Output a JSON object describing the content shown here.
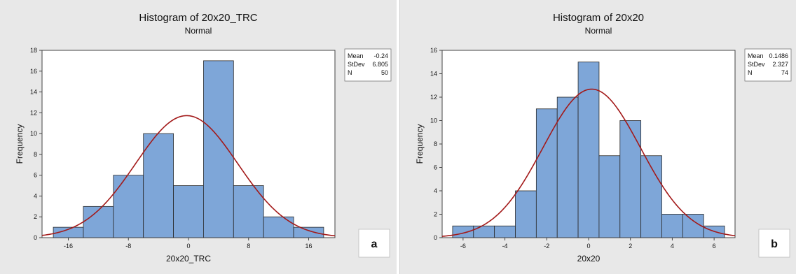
{
  "colors": {
    "bar_fill": "#7ea6d8",
    "bar_stroke": "#2a2a2a",
    "curve": "#a31a1a",
    "panel_bg": "#e8e8e8",
    "plot_bg": "#ffffff"
  },
  "chart_data": [
    {
      "type": "bar",
      "title": "Histogram of 20x20_TRC",
      "subtitle": "Normal",
      "xlabel": "20x20_TRC",
      "ylabel": "Frequency",
      "panel_letter": "a",
      "xlim": [
        -19.5,
        19.5
      ],
      "ylim": [
        0,
        18
      ],
      "xticks": [
        -16,
        -8,
        0,
        8,
        16
      ],
      "yticks": [
        0,
        2,
        4,
        6,
        8,
        10,
        12,
        14,
        16,
        18
      ],
      "bin_edges": [
        -18,
        -14,
        -10,
        -6,
        -2,
        2,
        6,
        10,
        14,
        18
      ],
      "values": [
        1,
        3,
        6,
        10,
        5,
        17,
        5,
        2,
        1
      ],
      "fit": {
        "dist": "normal",
        "mean": -0.24,
        "stdev": 6.805,
        "n": 50,
        "bin_width": 4
      },
      "legend": {
        "position": "top-right",
        "rows": [
          {
            "label": "Mean",
            "value": "-0.24"
          },
          {
            "label": "StDev",
            "value": "6.805"
          },
          {
            "label": "N",
            "value": "50"
          }
        ]
      }
    },
    {
      "type": "bar",
      "title": "Histogram of 20x20",
      "subtitle": "Normal",
      "xlabel": "20x20",
      "ylabel": "Frequency",
      "panel_letter": "b",
      "xlim": [
        -7.0,
        7.0
      ],
      "ylim": [
        0,
        16
      ],
      "xticks": [
        -6,
        -4,
        -2,
        0,
        2,
        4,
        6
      ],
      "yticks": [
        0,
        2,
        4,
        6,
        8,
        10,
        12,
        14,
        16
      ],
      "bin_edges": [
        -6.5,
        -5.5,
        -4.5,
        -3.5,
        -2.5,
        -1.5,
        -0.5,
        0.5,
        1.5,
        2.5,
        3.5,
        4.5,
        5.5,
        6.5
      ],
      "values": [
        1,
        1,
        1,
        4,
        11,
        12,
        15,
        7,
        10,
        7,
        2,
        2,
        1
      ],
      "fit": {
        "dist": "normal",
        "mean": 0.1486,
        "stdev": 2.327,
        "n": 74,
        "bin_width": 1
      },
      "legend": {
        "position": "top-right",
        "rows": [
          {
            "label": "Mean",
            "value": "0.1486"
          },
          {
            "label": "StDev",
            "value": "2.327"
          },
          {
            "label": "N",
            "value": "74"
          }
        ]
      }
    }
  ]
}
